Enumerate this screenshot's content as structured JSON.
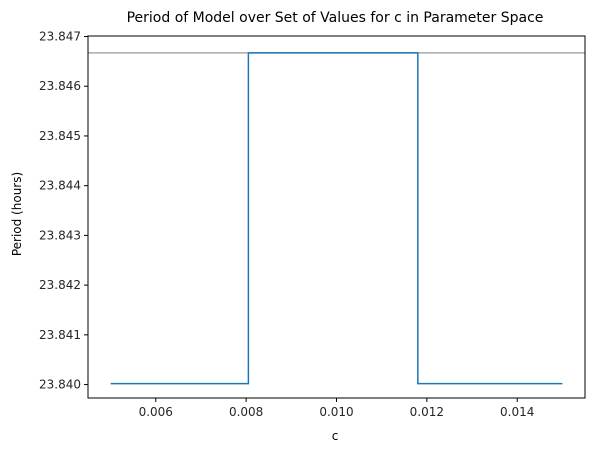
{
  "chart_data": {
    "type": "line",
    "title": "Period of Model over Set of Values for c in Parameter Space",
    "xlabel": "c",
    "ylabel": "Period (hours)",
    "xlim": [
      0.0045,
      0.0155
    ],
    "ylim": [
      23.83973,
      23.84701
    ],
    "xticks": [
      0.006,
      0.008,
      0.01,
      0.012,
      0.014
    ],
    "xtick_labels": [
      "0.006",
      "0.008",
      "0.010",
      "0.012",
      "0.014"
    ],
    "yticks": [
      23.84,
      23.841,
      23.842,
      23.843,
      23.844,
      23.845,
      23.846,
      23.847
    ],
    "ytick_labels": [
      "23.840",
      "23.841",
      "23.842",
      "23.843",
      "23.844",
      "23.845",
      "23.846",
      "23.847"
    ],
    "grid": false,
    "series": [
      {
        "color": "#1f77b4",
        "x": [
          0.005,
          0.00805,
          0.00805,
          0.0118,
          0.0118,
          0.015
        ],
        "y": [
          23.84002,
          23.84002,
          23.84667,
          23.84667,
          23.84002,
          23.84002
        ]
      }
    ],
    "reference_line": {
      "y": 23.84667,
      "color": "#aaaaaa"
    }
  }
}
